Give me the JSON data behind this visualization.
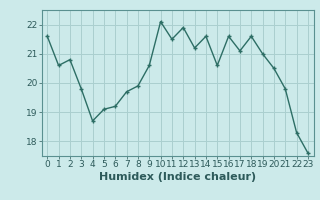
{
  "x": [
    0,
    1,
    2,
    3,
    4,
    5,
    6,
    7,
    8,
    9,
    10,
    11,
    12,
    13,
    14,
    15,
    16,
    17,
    18,
    19,
    20,
    21,
    22,
    23
  ],
  "y": [
    21.6,
    20.6,
    20.8,
    19.8,
    18.7,
    19.1,
    19.2,
    19.7,
    19.9,
    20.6,
    22.1,
    21.5,
    21.9,
    21.2,
    21.6,
    20.6,
    21.6,
    21.1,
    21.6,
    21.0,
    20.5,
    19.8,
    18.3,
    17.6
  ],
  "line_color": "#2d6e65",
  "marker": "+",
  "marker_size": 4,
  "bg_color": "#cceaea",
  "grid_color": "#aacfcf",
  "xlabel": "Humidex (Indice chaleur)",
  "ylim": [
    17.5,
    22.5
  ],
  "xlim": [
    -0.5,
    23.5
  ],
  "yticks": [
    18,
    19,
    20,
    21,
    22
  ],
  "xticks": [
    0,
    1,
    2,
    3,
    4,
    5,
    6,
    7,
    8,
    9,
    10,
    11,
    12,
    13,
    14,
    15,
    16,
    17,
    18,
    19,
    20,
    21,
    22,
    23
  ],
  "tick_fontsize": 6.5,
  "xlabel_fontsize": 8,
  "line_width": 1.0,
  "marker_size_val": 3.5
}
